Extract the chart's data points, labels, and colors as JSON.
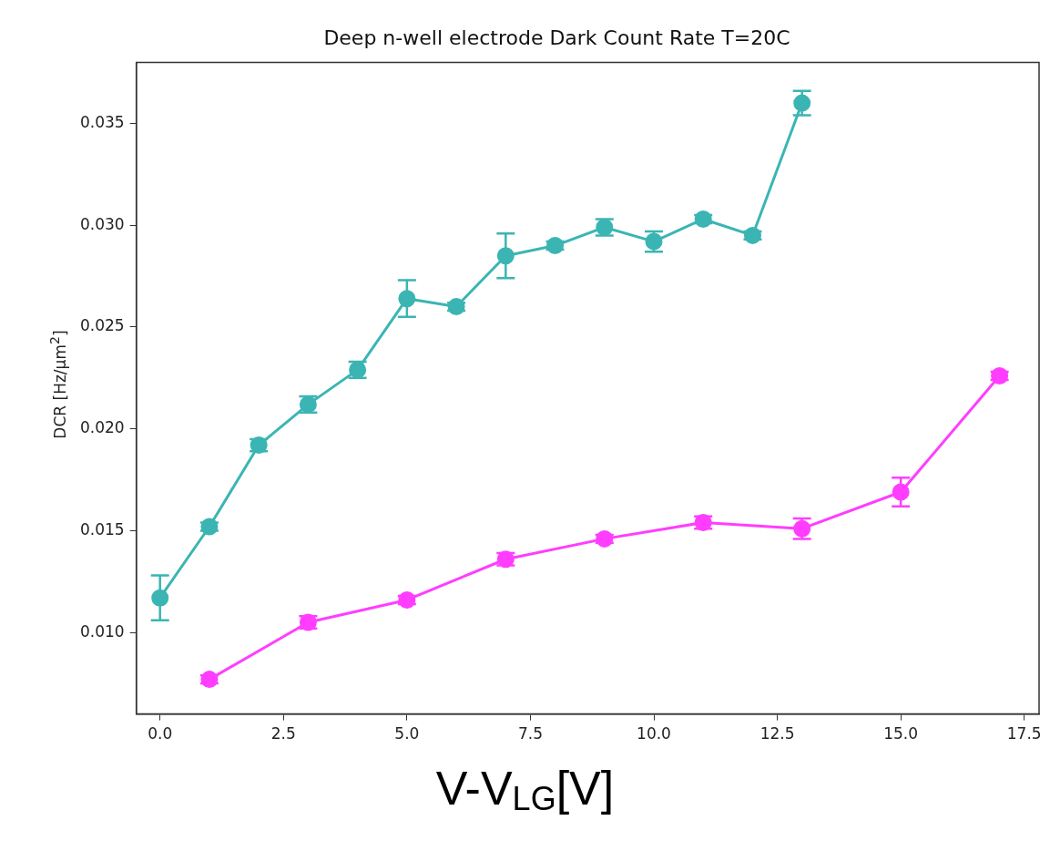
{
  "chart_data": {
    "type": "line",
    "title": "Deep n-well electrode Dark Count Rate T=20C",
    "xlabel": "V-V$_{LG}$[V]",
    "ylabel": "DCR [Hz/μm$^{2}$]",
    "xlim": [
      -0.48,
      17.8
    ],
    "ylim": [
      0.006,
      0.038
    ],
    "xticks": [
      {
        "value": 0,
        "label": "0.0"
      },
      2.5,
      {
        "value": 5,
        "label": "5.0"
      },
      7.5,
      {
        "value": 10,
        "label": "10.0"
      },
      12.5,
      {
        "value": 15,
        "label": "15.0"
      },
      17.5
    ],
    "yticks": [
      {
        "value": 0.01,
        "label": "0.010"
      },
      0.015,
      {
        "value": 0.02,
        "label": "0.020"
      },
      0.025,
      {
        "value": 0.03,
        "label": "0.030"
      },
      0.035
    ],
    "marker": "circle",
    "line_style": "solid",
    "grid": false,
    "legend": false,
    "series": [
      {
        "color": "#3bb5b3",
        "x": [
          0,
          1,
          2,
          3,
          4,
          5,
          6,
          7,
          8,
          9,
          10,
          11,
          12,
          13
        ],
        "values": [
          0.0117,
          0.0152,
          0.0192,
          0.0212,
          0.0229,
          0.0264,
          0.026,
          0.0285,
          0.029,
          0.0299,
          0.0292,
          0.0303,
          0.0295,
          0.036
        ],
        "errors": [
          0.0011,
          0.0002,
          0.0003,
          0.0004,
          0.0004,
          0.0009,
          0.0002,
          0.0011,
          0.0002,
          0.0004,
          0.0005,
          0.0002,
          0.0002,
          0.0006
        ]
      },
      {
        "color": "#ff3dff",
        "x": [
          1,
          3,
          5,
          7,
          9,
          11,
          13,
          15,
          17
        ],
        "values": [
          0.0077,
          0.0105,
          0.0116,
          0.0136,
          0.0146,
          0.0154,
          0.0151,
          0.0169,
          0.0226
        ],
        "errors": [
          0.0002,
          0.0003,
          0.0002,
          0.0003,
          0.0002,
          0.0003,
          0.0005,
          0.0007,
          0.0002
        ]
      }
    ]
  }
}
